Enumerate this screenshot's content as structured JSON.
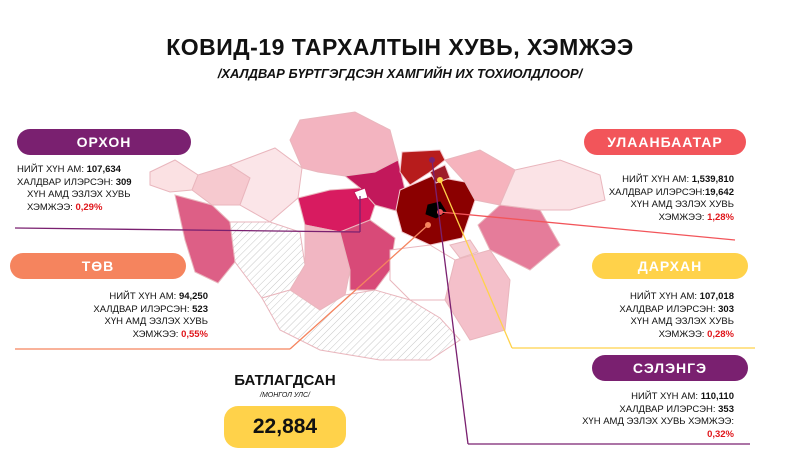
{
  "title": "КОВИД-19 ТАРХАЛТЫН ХУВЬ, ХЭМЖЭЭ",
  "subtitle": "/ХАЛДВАР БҮРТГЭГДСЭН ХАМГИЙН ИХ ТОХИОЛДЛООР/",
  "confirmed": {
    "title": "БАТЛАГДСАН",
    "subtitle": "/МОНГОЛ УЛС/",
    "value": "22,884",
    "color": "#ffd24a"
  },
  "regions": {
    "orkhon": {
      "name": "ОРХОН",
      "color": "#7a2070",
      "population_label": "НИЙТ ХҮН АМ:",
      "population": "107,634",
      "infected_label": "ХАЛДВАР ИЛЭРСЭН:",
      "infected": "309",
      "share_label_1": "ХҮН АМД ЭЗЛЭХ ХУВЬ",
      "share_label_2": "ХЭМЖЭЭ:",
      "share": "0,29%"
    },
    "tov": {
      "name": "ТӨВ",
      "color": "#f5845e",
      "population_label": "НИЙТ ХҮН АМ:",
      "population": "94,250",
      "infected_label": "ХАЛДВАР ИЛЭРСЭН:",
      "infected": "523",
      "share_label_1": "ХҮН АМД ЭЗЛЭХ ХУВЬ",
      "share_label_2": "ХЭМЖЭЭ:",
      "share": "0,55%"
    },
    "ulaanbaatar": {
      "name": "УЛААНБААТАР",
      "color": "#f2555a",
      "population_label": "НИЙТ ХҮН АМ:",
      "population": "1,539,810",
      "infected_label": "ХАЛДВАР ИЛЭРСЭН:",
      "infected": "19,642",
      "share_label_1": "ХҮН АМД ЭЗЛЭХ ХУВЬ",
      "share_label_2": "ХЭМЖЭЭ:",
      "share": "1,28%"
    },
    "darkhan": {
      "name": "ДАРХАН",
      "color": "#ffd24a",
      "population_label": "НИЙТ ХҮН АМ:",
      "population": "107,018",
      "infected_label": "ХАЛДВАР ИЛЭРСЭН:",
      "infected": "303",
      "share_label_1": "ХҮН АМД ЭЗЛЭХ ХУВЬ",
      "share_label_2": "ХЭМЖЭЭ:",
      "share": "0,28%"
    },
    "selenge": {
      "name": "СЭЛЭНГЭ",
      "color": "#7a2070",
      "population_label": "НИЙТ ХҮН АМ:",
      "population": "110,110",
      "infected_label": "ХАЛДВАР ИЛЭРСЭН:",
      "infected": "353",
      "share_label_1": "ХҮН АМД ЭЗЛЭХ ХУВЬ ХЭМЖЭЭ:",
      "share": "0,32%"
    }
  }
}
